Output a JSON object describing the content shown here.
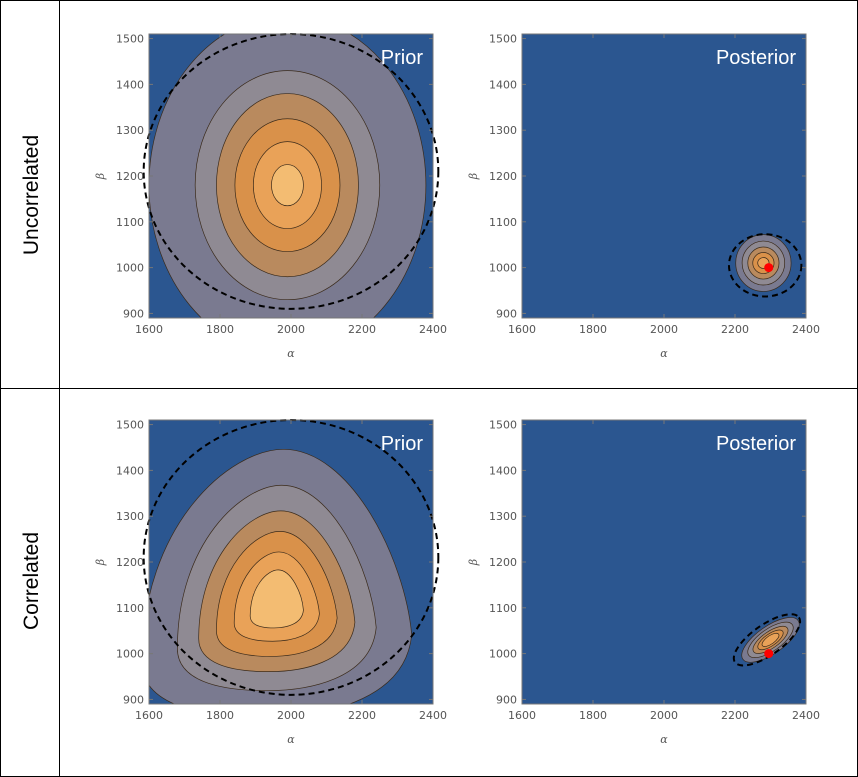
{
  "colors": {
    "background": "#2b5690",
    "frame": "#777777",
    "point": "#ff0000",
    "contour_fills": [
      "#2b5690",
      "#7a7a90",
      "#8f8a93",
      "#b98a5e",
      "#d9914a",
      "#e9a258",
      "#f3bc72",
      "#f8d28e",
      "#fbe5aa",
      "#fef3c6"
    ]
  },
  "rows": [
    {
      "label": "Uncorrelated",
      "panels": [
        {
          "title": "Prior",
          "chart_data": {
            "type": "contour",
            "xlabel": "α",
            "ylabel": "β",
            "xlim": [
              1600,
              2400
            ],
            "ylim": [
              890,
              1510
            ],
            "xticks": [
              "1600",
              "1800",
              "2000",
              "2200",
              "2400"
            ],
            "yticks": [
              "900",
              "1000",
              "1100",
              "1200",
              "1300",
              "1400",
              "1500"
            ],
            "peak": [
              1990,
              1180
            ],
            "contour_levels": [
              {
                "rx": 390,
                "ry": 370
              },
              {
                "rx": 260,
                "ry": 250
              },
              {
                "rx": 200,
                "ry": 200
              },
              {
                "rx": 148,
                "ry": 145
              },
              {
                "rx": 96,
                "ry": 95
              },
              {
                "rx": 45,
                "ry": 45
              }
            ],
            "credible_ellipse": {
              "cx": 2000,
              "cy": 1210,
              "rx": 415,
              "ry": 300
            }
          }
        },
        {
          "title": "Posterior",
          "chart_data": {
            "type": "contour",
            "xlabel": "α",
            "ylabel": "β",
            "xlim": [
              1600,
              2400
            ],
            "ylim": [
              890,
              1510
            ],
            "xticks": [
              "1600",
              "1800",
              "2000",
              "2200",
              "2400"
            ],
            "yticks": [
              "900",
              "1000",
              "1100",
              "1200",
              "1300",
              "1400",
              "1500"
            ],
            "peak": [
              2280,
              1010
            ],
            "contour_levels": [
              {
                "rx": 78,
                "ry": 62
              },
              {
                "rx": 60,
                "ry": 48
              },
              {
                "rx": 44,
                "ry": 35
              },
              {
                "rx": 30,
                "ry": 23
              },
              {
                "rx": 16,
                "ry": 12
              }
            ],
            "credible_ellipse": {
              "cx": 2285,
              "cy": 1005,
              "rx": 102,
              "ry": 68
            },
            "true_value": {
              "x": 2295,
              "y": 1000
            }
          }
        }
      ]
    },
    {
      "label": "Correlated",
      "panels": [
        {
          "title": "Prior",
          "chart_data": {
            "type": "contour",
            "xlabel": "α",
            "ylabel": "β",
            "xlim": [
              1600,
              2400
            ],
            "ylim": [
              890,
              1510
            ],
            "xticks": [
              "1600",
              "1800",
              "2000",
              "2200",
              "2400"
            ],
            "yticks": [
              "900",
              "1000",
              "1100",
              "1200",
              "1300",
              "1400",
              "1500"
            ],
            "peak": [
              1960,
              1110
            ],
            "contour_levels": [
              {
                "rx": 380,
                "ry": 300
              },
              {
                "rx": 280,
                "ry": 230
              },
              {
                "rx": 220,
                "ry": 180
              },
              {
                "rx": 170,
                "ry": 140
              },
              {
                "rx": 120,
                "ry": 100
              },
              {
                "rx": 75,
                "ry": 65
              }
            ],
            "credible_ellipse": {
              "cx": 2000,
              "cy": 1210,
              "rx": 415,
              "ry": 300
            }
          }
        },
        {
          "title": "Posterior",
          "chart_data": {
            "type": "contour",
            "xlabel": "α",
            "ylabel": "β",
            "xlim": [
              1600,
              2400
            ],
            "ylim": [
              890,
              1510
            ],
            "xticks": [
              "1600",
              "1800",
              "2000",
              "2200",
              "2400"
            ],
            "yticks": [
              "900",
              "1000",
              "1100",
              "1200",
              "1300",
              "1400",
              "1500"
            ],
            "peak": [
              2300,
              1030
            ],
            "correlated": true,
            "contour_levels": [
              {
                "rx": 95,
                "ry": 30
              },
              {
                "rx": 75,
                "ry": 24
              },
              {
                "rx": 58,
                "ry": 18
              },
              {
                "rx": 42,
                "ry": 13
              },
              {
                "rx": 28,
                "ry": 9
              }
            ],
            "credible_ellipse": {
              "cx": 2290,
              "cy": 1030,
              "rx": 110,
              "ry": 33
            },
            "true_value": {
              "x": 2295,
              "y": 1000
            }
          }
        }
      ]
    }
  ]
}
